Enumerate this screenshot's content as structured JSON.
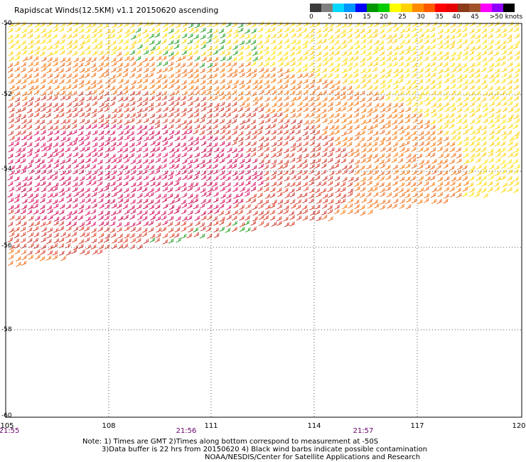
{
  "title": "Rapidscat Winds(12.5KM) v1.1 20150620 ascending",
  "legend": {
    "colors": [
      "#3c3c3c",
      "#7f7f7f",
      "#00d8ff",
      "#0096ff",
      "#0000ff",
      "#009600",
      "#00cc00",
      "#ffff00",
      "#ffd200",
      "#ff8c00",
      "#ff5a00",
      "#ff0000",
      "#e60000",
      "#8b3a1a",
      "#a0522d",
      "#ff00ff",
      "#9000ff",
      "#000000"
    ],
    "labels": [
      "0",
      "5",
      "10",
      "15",
      "20",
      "25",
      "30",
      "35",
      "40",
      "45",
      ">50 knots"
    ]
  },
  "axes": {
    "lat_labels": [
      "-50",
      "-52",
      "-54",
      "-56",
      "-58",
      "-60"
    ],
    "lon_labels": [
      "105",
      "108",
      "111",
      "114",
      "117",
      "120"
    ]
  },
  "times": [
    "21:55",
    "21:56",
    "21:57"
  ],
  "notes": {
    "line1": "Note: 1) Times are GMT 2)Times along bottom correspond to measurement at -50S",
    "line2": "3)Data buffer is 22 hrs from 20150620 4) Black wind barbs indicate possible contamination",
    "line3": "NOAA/NESDIS/Center for Satellite Applications and Research"
  }
}
